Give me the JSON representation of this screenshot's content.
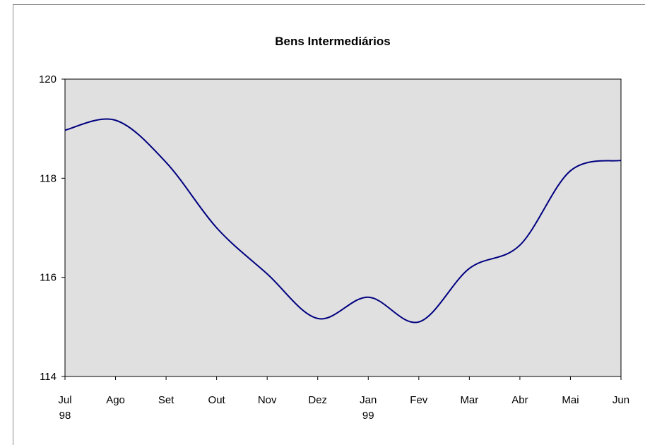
{
  "chart_data": {
    "type": "line",
    "title": "Bens Intermediários",
    "categories": [
      "Jul 98",
      "Ago",
      "Set",
      "Out",
      "Nov",
      "Dez",
      "Jan 99",
      "Fev",
      "Mar",
      "Abr",
      "Mai",
      "Jun"
    ],
    "series": [
      {
        "name": "Bens Intermediários",
        "color": "#000080",
        "values": [
          118.97,
          119.17,
          118.32,
          117.0,
          116.07,
          115.17,
          115.6,
          115.1,
          116.18,
          116.65,
          118.15,
          118.36
        ]
      }
    ],
    "ylim": [
      114,
      120
    ],
    "yticks": [
      114,
      116,
      118,
      120
    ],
    "grid": false,
    "background": "#e0e0e0"
  }
}
